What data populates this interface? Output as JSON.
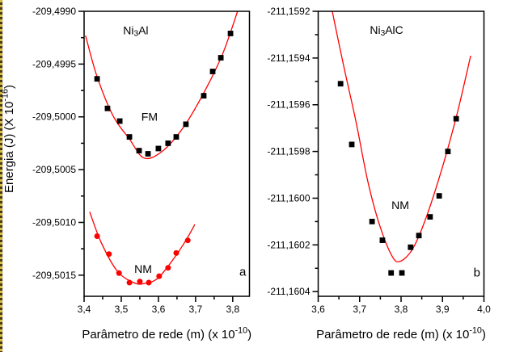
{
  "page": {
    "background": "#ffffff"
  },
  "chart_data": [
    {
      "panel": "a",
      "type": "scatter",
      "title": {
        "pre": "Ni",
        "sub": "3",
        "post": "Al"
      },
      "title_xy": [
        3.539,
        -209.49918
      ],
      "panel_label": "a",
      "panel_label_xy": [
        3.827,
        -209.50147
      ],
      "xlabel": {
        "pre": "Parâmetro de rede (m) (x 10",
        "sup": "-10",
        "post": ")"
      },
      "ylabel": {
        "pre": "Energia (J) (X 10",
        "sup": "-16",
        "post": ")"
      },
      "xlim": [
        3.4,
        3.845
      ],
      "ylim": [
        -209.5017,
        -209.499
      ],
      "x_ticks": [
        {
          "v": 3.4,
          "label": "3,4"
        },
        {
          "v": 3.5,
          "label": "3,5"
        },
        {
          "v": 3.6,
          "label": "3,6"
        },
        {
          "v": 3.7,
          "label": "3,7"
        },
        {
          "v": 3.8,
          "label": "3,8"
        }
      ],
      "x_minor_ticks": [
        3.45,
        3.55,
        3.65,
        3.75
      ],
      "y_ticks": [
        {
          "v": -209.499,
          "label": "-209,4990"
        },
        {
          "v": -209.4995,
          "label": "-209,4995"
        },
        {
          "v": -209.5,
          "label": "-209,5000"
        },
        {
          "v": -209.5005,
          "label": "-209,5005"
        },
        {
          "v": -209.501,
          "label": "-209,5010"
        },
        {
          "v": -209.5015,
          "label": "-209,5015"
        }
      ],
      "y_minor_ticks": [
        -209.49925,
        -209.49975,
        -209.50025,
        -209.50075,
        -209.50125
      ],
      "grid": false,
      "series": [
        {
          "name": "FM",
          "label_xy": [
            3.576,
            -209.5
          ],
          "marker": "square",
          "marker_color": "#000000",
          "curve_color": "#ff0000",
          "points": [
            [
              3.435,
              -209.49964
            ],
            [
              3.463,
              -209.49992
            ],
            [
              3.496,
              -209.50004
            ],
            [
              3.522,
              -209.50019
            ],
            [
              3.548,
              -209.50032
            ],
            [
              3.572,
              -209.50035
            ],
            [
              3.6,
              -209.5003
            ],
            [
              3.626,
              -209.50025
            ],
            [
              3.648,
              -209.50019
            ],
            [
              3.674,
              -209.50007
            ],
            [
              3.722,
              -209.4998
            ],
            [
              3.746,
              -209.49957
            ],
            [
              3.768,
              -209.49944
            ],
            [
              3.794,
              -209.49921
            ]
          ],
          "curve": [
            [
              3.404,
              -209.49923
            ],
            [
              3.435,
              -209.49962
            ],
            [
              3.478,
              -209.49999
            ],
            [
              3.522,
              -209.50021
            ],
            [
              3.561,
              -209.50039
            ],
            [
              3.609,
              -209.50033
            ],
            [
              3.663,
              -209.50012
            ],
            [
              3.718,
              -209.4998
            ],
            [
              3.772,
              -209.49941
            ],
            [
              3.813,
              -209.499
            ]
          ]
        },
        {
          "name": "NM",
          "label_xy": [
            3.559,
            -209.50144
          ],
          "marker": "circle",
          "marker_color": "#ff0000",
          "curve_color": "#ff0000",
          "points": [
            [
              3.435,
              -209.50113
            ],
            [
              3.467,
              -209.5013
            ],
            [
              3.494,
              -209.50148
            ],
            [
              3.522,
              -209.50157
            ],
            [
              3.55,
              -209.50156
            ],
            [
              3.574,
              -209.50157
            ],
            [
              3.602,
              -209.50151
            ],
            [
              3.626,
              -209.50143
            ],
            [
              3.648,
              -209.50129
            ],
            [
              3.679,
              -209.50117
            ]
          ],
          "curve": [
            [
              3.415,
              -209.5009
            ],
            [
              3.446,
              -209.50119
            ],
            [
              3.489,
              -209.50146
            ],
            [
              3.533,
              -209.50157
            ],
            [
              3.561,
              -209.50158
            ],
            [
              3.598,
              -209.50153
            ],
            [
              3.642,
              -209.50134
            ],
            [
              3.674,
              -209.50117
            ],
            [
              3.698,
              -209.50102
            ]
          ]
        }
      ]
    },
    {
      "panel": "b",
      "type": "scatter",
      "title": {
        "pre": "Ni",
        "sub": "3",
        "post": "AlC"
      },
      "title_xy": [
        3.765,
        -211.15928
      ],
      "panel_label": "b",
      "panel_label_xy": [
        3.983,
        -211.16032
      ],
      "xlabel": {
        "pre": "Parâmetro de rede (m) (x 10",
        "sup": "-10",
        "post": ")"
      },
      "ylabel": null,
      "xlim": [
        3.6,
        4.0
      ],
      "ylim": [
        -211.16042,
        -211.1592
      ],
      "x_ticks": [
        {
          "v": 3.6,
          "label": "3,6"
        },
        {
          "v": 3.7,
          "label": "3,7"
        },
        {
          "v": 3.8,
          "label": "3,8"
        },
        {
          "v": 3.9,
          "label": "3,9"
        },
        {
          "v": 4.0,
          "label": "4,0"
        }
      ],
      "x_minor_ticks": [
        3.65,
        3.75,
        3.85,
        3.95
      ],
      "y_ticks": [
        {
          "v": -211.1592,
          "label": "-211,1592"
        },
        {
          "v": -211.1594,
          "label": "-211,1594"
        },
        {
          "v": -211.1596,
          "label": "-211,1596"
        },
        {
          "v": -211.1598,
          "label": "-211,1598"
        },
        {
          "v": -211.16,
          "label": "-211,1600"
        },
        {
          "v": -211.1602,
          "label": "-211,1602"
        },
        {
          "v": -211.1604,
          "label": "-211,1604"
        }
      ],
      "y_minor_ticks": [
        -211.1593,
        -211.1595,
        -211.1597,
        -211.1599,
        -211.1601,
        -211.1603
      ],
      "grid": false,
      "series": [
        {
          "name": "NM",
          "label_xy": [
            3.798,
            -211.16003
          ],
          "marker": "square",
          "marker_color": "#000000",
          "curve_color": "#ff0000",
          "points": [
            [
              3.654,
              -211.15951
            ],
            [
              3.681,
              -211.15977
            ],
            [
              3.73,
              -211.1601
            ],
            [
              3.755,
              -211.16018
            ],
            [
              3.776,
              -211.16032
            ],
            [
              3.802,
              -211.16032
            ],
            [
              3.823,
              -211.16021
            ],
            [
              3.843,
              -211.16016
            ],
            [
              3.87,
              -211.16008
            ],
            [
              3.892,
              -211.15999
            ],
            [
              3.913,
              -211.1598
            ],
            [
              3.933,
              -211.15966
            ]
          ],
          "curve": [
            [
              3.634,
              -211.1592
            ],
            [
              3.661,
              -211.15943
            ],
            [
              3.691,
              -211.15967
            ],
            [
              3.72,
              -211.15993
            ],
            [
              3.749,
              -211.16012
            ],
            [
              3.779,
              -211.16025
            ],
            [
              3.798,
              -211.16027
            ],
            [
              3.827,
              -211.16022
            ],
            [
              3.857,
              -211.1601
            ],
            [
              3.896,
              -211.15989
            ],
            [
              3.935,
              -211.15964
            ],
            [
              3.968,
              -211.15939
            ]
          ]
        }
      ]
    }
  ]
}
